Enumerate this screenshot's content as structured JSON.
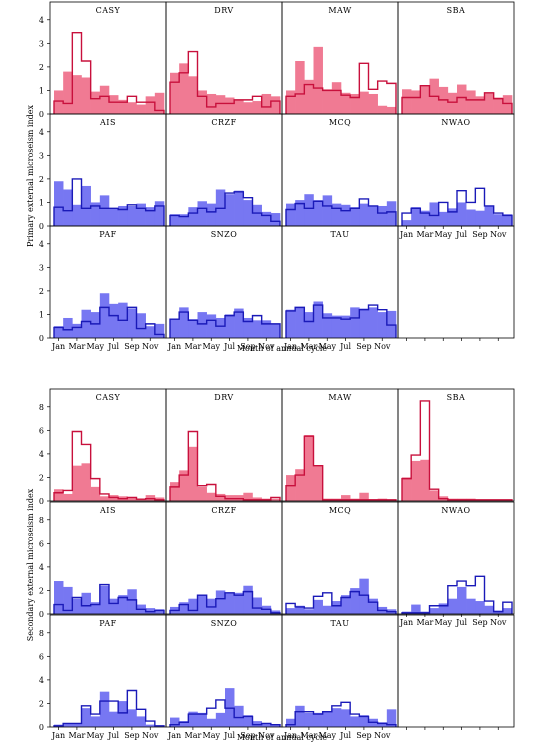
{
  "colors": {
    "red_fill": "#f07a93",
    "red_line": "#c8103c",
    "blue_fill": "#7777f2",
    "blue_line": "#1a1ab8"
  },
  "chart_data": [
    {
      "type": "bar",
      "style": "step-histogram small multiples, 4 columns x 3 rows",
      "xlabel": "Month of annual cycle",
      "ylabel": "Primary external microseism index",
      "x_tick_labels": [
        "Jan",
        "Mar",
        "May",
        "Jul",
        "Sep",
        "Nov"
      ],
      "categories": [
        "Jan",
        "Feb",
        "Mar",
        "Apr",
        "May",
        "Jun",
        "Jul",
        "Aug",
        "Sep",
        "Oct",
        "Nov",
        "Dec"
      ],
      "ylim": [
        0,
        4.5
      ],
      "yticks": [
        0,
        1,
        2,
        3,
        4
      ],
      "panels": [
        {
          "station": "CASY",
          "color": "red",
          "filled": [
            1.0,
            1.8,
            1.65,
            1.55,
            0.95,
            1.2,
            0.8,
            0.6,
            0.5,
            0.4,
            0.75,
            0.9
          ],
          "outline": [
            0.55,
            0.45,
            3.45,
            2.25,
            0.65,
            0.75,
            0.5,
            0.5,
            0.75,
            0.5,
            0.5,
            0.15
          ]
        },
        {
          "station": "DRV",
          "color": "red",
          "filled": [
            1.75,
            2.15,
            1.6,
            1.0,
            0.85,
            0.8,
            0.7,
            0.6,
            0.5,
            0.55,
            0.85,
            0.75
          ],
          "outline": [
            1.35,
            1.75,
            2.65,
            0.75,
            0.3,
            0.45,
            0.45,
            0.6,
            0.6,
            0.75,
            0.3,
            0.55
          ]
        },
        {
          "station": "MAW",
          "color": "red",
          "filled": [
            1.0,
            2.25,
            1.45,
            2.85,
            1.05,
            1.35,
            0.9,
            0.85,
            0.95,
            0.85,
            0.35,
            0.3
          ],
          "outline": [
            0.75,
            0.85,
            1.25,
            1.1,
            1.0,
            1.0,
            0.8,
            0.7,
            2.15,
            1.05,
            1.4,
            1.3
          ]
        },
        {
          "station": "SBA",
          "color": "red",
          "filled": [
            1.05,
            1.0,
            1.2,
            1.5,
            1.15,
            0.9,
            1.25,
            1.0,
            0.75,
            0.9,
            0.7,
            0.8
          ],
          "outline": [
            0.7,
            0.7,
            1.2,
            0.75,
            0.6,
            0.5,
            0.7,
            0.6,
            0.6,
            0.9,
            0.65,
            0.45
          ]
        },
        {
          "station": "AIS",
          "color": "blue",
          "filled": [
            1.9,
            1.55,
            0.9,
            1.7,
            1.0,
            1.3,
            0.75,
            0.85,
            0.85,
            0.95,
            0.8,
            1.05
          ],
          "outline": [
            0.8,
            0.65,
            2.0,
            0.75,
            0.85,
            0.75,
            0.75,
            0.7,
            0.9,
            0.75,
            0.65,
            0.85
          ]
        },
        {
          "station": "CRZF",
          "color": "blue",
          "filled": [
            0.5,
            0.5,
            0.8,
            1.05,
            0.95,
            1.55,
            1.35,
            1.5,
            1.1,
            0.9,
            0.6,
            0.55
          ],
          "outline": [
            0.45,
            0.4,
            0.55,
            0.75,
            0.6,
            0.75,
            1.4,
            1.45,
            1.2,
            0.55,
            0.45,
            0.2
          ]
        },
        {
          "station": "MCQ",
          "color": "blue",
          "filled": [
            0.95,
            1.1,
            1.35,
            1.1,
            1.3,
            0.95,
            0.9,
            0.8,
            0.95,
            0.85,
            0.85,
            1.05
          ],
          "outline": [
            0.7,
            0.95,
            0.75,
            1.05,
            0.85,
            0.75,
            0.65,
            0.75,
            1.15,
            0.85,
            0.55,
            0.6
          ]
        },
        {
          "station": "NWAO",
          "color": "blue",
          "filled": [
            0.25,
            0.8,
            0.65,
            1.0,
            0.6,
            0.75,
            1.0,
            0.7,
            0.65,
            0.85,
            0.5,
            0.5
          ],
          "outline": [
            0.55,
            0.75,
            0.55,
            0.45,
            1.0,
            0.6,
            1.5,
            1.0,
            1.6,
            0.85,
            0.55,
            0.45
          ]
        },
        {
          "station": "PAF",
          "color": "blue",
          "filled": [
            0.5,
            0.85,
            0.6,
            1.2,
            1.1,
            1.9,
            1.45,
            1.5,
            1.25,
            1.05,
            0.5,
            0.6
          ],
          "outline": [
            0.45,
            0.35,
            0.45,
            0.7,
            0.6,
            1.3,
            0.95,
            0.75,
            1.3,
            0.4,
            0.6,
            0.15
          ]
        },
        {
          "station": "SNZO",
          "color": "blue",
          "filled": [
            0.8,
            1.3,
            0.8,
            1.1,
            1.0,
            0.85,
            1.0,
            1.25,
            0.85,
            0.75,
            0.75,
            0.6
          ],
          "outline": [
            0.8,
            1.1,
            0.75,
            0.6,
            0.75,
            0.5,
            0.95,
            1.1,
            0.7,
            0.95,
            0.6,
            0.6
          ]
        },
        {
          "station": "TAU",
          "color": "blue",
          "filled": [
            1.2,
            1.3,
            1.1,
            1.55,
            1.05,
            0.95,
            0.95,
            1.3,
            1.25,
            1.3,
            1.1,
            1.15
          ],
          "outline": [
            1.15,
            1.3,
            0.7,
            1.4,
            0.85,
            0.85,
            0.8,
            0.85,
            1.2,
            1.4,
            1.2,
            0.55
          ]
        }
      ]
    },
    {
      "type": "bar",
      "style": "step-histogram small multiples, 4 columns x 3 rows",
      "xlabel": "Month of annual cycle",
      "ylabel": "Secondary external microseism index",
      "x_tick_labels": [
        "Jan",
        "Mar",
        "May",
        "Jul",
        "Sep",
        "Nov"
      ],
      "categories": [
        "Jan",
        "Feb",
        "Mar",
        "Apr",
        "May",
        "Jun",
        "Jul",
        "Aug",
        "Sep",
        "Oct",
        "Nov",
        "Dec"
      ],
      "ylim": [
        0,
        9
      ],
      "yticks": [
        0,
        2,
        4,
        6,
        8
      ],
      "panels": [
        {
          "station": "CASY",
          "color": "red",
          "filled": [
            1.0,
            0.6,
            3.0,
            3.2,
            1.2,
            0.4,
            0.5,
            0.4,
            0.3,
            0.2,
            0.5,
            0.3
          ],
          "outline": [
            0.7,
            0.9,
            5.9,
            4.8,
            1.9,
            0.6,
            0.3,
            0.2,
            0.3,
            0.15,
            0.2,
            0.1
          ]
        },
        {
          "station": "DRV",
          "color": "red",
          "filled": [
            1.6,
            2.6,
            4.6,
            1.2,
            0.7,
            0.6,
            0.5,
            0.5,
            0.7,
            0.3,
            0.2,
            0.2
          ],
          "outline": [
            1.2,
            2.2,
            5.9,
            1.3,
            1.4,
            0.4,
            0.2,
            0.2,
            0.1,
            0.1,
            0.1,
            0.3
          ]
        },
        {
          "station": "MAW",
          "color": "red",
          "filled": [
            2.2,
            2.7,
            5.6,
            3.0,
            0.2,
            0.2,
            0.5,
            0.2,
            0.7,
            0.15,
            0.2,
            0.1
          ],
          "outline": [
            1.3,
            2.2,
            5.5,
            3.0,
            0.1,
            0.1,
            0.1,
            0.1,
            0.1,
            0.1,
            0.1,
            0.1
          ]
        },
        {
          "station": "SBA",
          "color": "red",
          "filled": [
            2.0,
            3.4,
            3.5,
            0.9,
            0.4,
            0.2,
            0.2,
            0.2,
            0.1,
            0.1,
            0.1,
            0.1
          ],
          "outline": [
            1.9,
            3.9,
            8.5,
            1.0,
            0.2,
            0.1,
            0.1,
            0.1,
            0.1,
            0.1,
            0.1,
            0.1
          ]
        },
        {
          "station": "AIS",
          "color": "blue",
          "filled": [
            2.8,
            2.3,
            1.3,
            1.8,
            1.0,
            2.4,
            1.3,
            1.6,
            2.1,
            0.8,
            0.5,
            0.4
          ],
          "outline": [
            0.8,
            0.3,
            1.4,
            0.7,
            0.8,
            2.5,
            0.9,
            1.4,
            1.2,
            0.4,
            0.2,
            0.3
          ]
        },
        {
          "station": "CRZF",
          "color": "blue",
          "filled": [
            0.6,
            1.0,
            1.3,
            1.6,
            1.3,
            2.0,
            1.8,
            1.8,
            2.4,
            1.4,
            0.7,
            0.3
          ],
          "outline": [
            0.3,
            0.8,
            0.3,
            1.6,
            0.6,
            1.3,
            1.8,
            1.6,
            1.9,
            0.5,
            0.4,
            0.1
          ]
        },
        {
          "station": "MCQ",
          "color": "blue",
          "filled": [
            0.5,
            0.7,
            0.4,
            1.2,
            0.7,
            1.1,
            1.6,
            2.2,
            3.0,
            1.3,
            0.6,
            0.4
          ],
          "outline": [
            0.9,
            0.6,
            0.5,
            1.5,
            1.8,
            0.7,
            1.4,
            1.9,
            1.6,
            1.0,
            0.3,
            0.2
          ]
        },
        {
          "station": "NWAO",
          "color": "blue",
          "filled": [
            0.2,
            0.8,
            0.2,
            0.5,
            0.9,
            1.3,
            2.3,
            1.3,
            1.1,
            0.7,
            0.3,
            0.5
          ],
          "outline": [
            0.1,
            0.1,
            0.1,
            0.7,
            0.7,
            2.4,
            2.8,
            2.4,
            3.2,
            1.1,
            0.2,
            1.0
          ]
        },
        {
          "station": "PAF",
          "color": "blue",
          "filled": [
            0.2,
            0.3,
            0.3,
            1.6,
            0.9,
            3.0,
            1.3,
            2.2,
            1.5,
            0.9,
            0.2,
            0.1
          ],
          "outline": [
            0.1,
            0.3,
            0.3,
            1.8,
            1.1,
            2.2,
            2.2,
            1.2,
            3.1,
            1.5,
            0.5,
            0.1
          ]
        },
        {
          "station": "SNZO",
          "color": "blue",
          "filled": [
            0.8,
            0.5,
            1.3,
            1.2,
            0.7,
            1.2,
            3.3,
            1.8,
            1.0,
            0.5,
            0.3,
            0.2
          ],
          "outline": [
            0.2,
            0.4,
            1.1,
            1.1,
            1.6,
            2.3,
            1.6,
            0.8,
            0.9,
            0.2,
            0.3,
            0.2
          ]
        },
        {
          "station": "TAU",
          "color": "blue",
          "filled": [
            0.7,
            1.8,
            1.2,
            1.2,
            1.3,
            1.6,
            1.5,
            0.9,
            1.0,
            0.7,
            0.4,
            1.5
          ],
          "outline": [
            0.2,
            1.3,
            1.3,
            1.1,
            1.3,
            1.8,
            2.1,
            1.1,
            0.9,
            0.4,
            0.3,
            0.2
          ]
        }
      ]
    }
  ]
}
